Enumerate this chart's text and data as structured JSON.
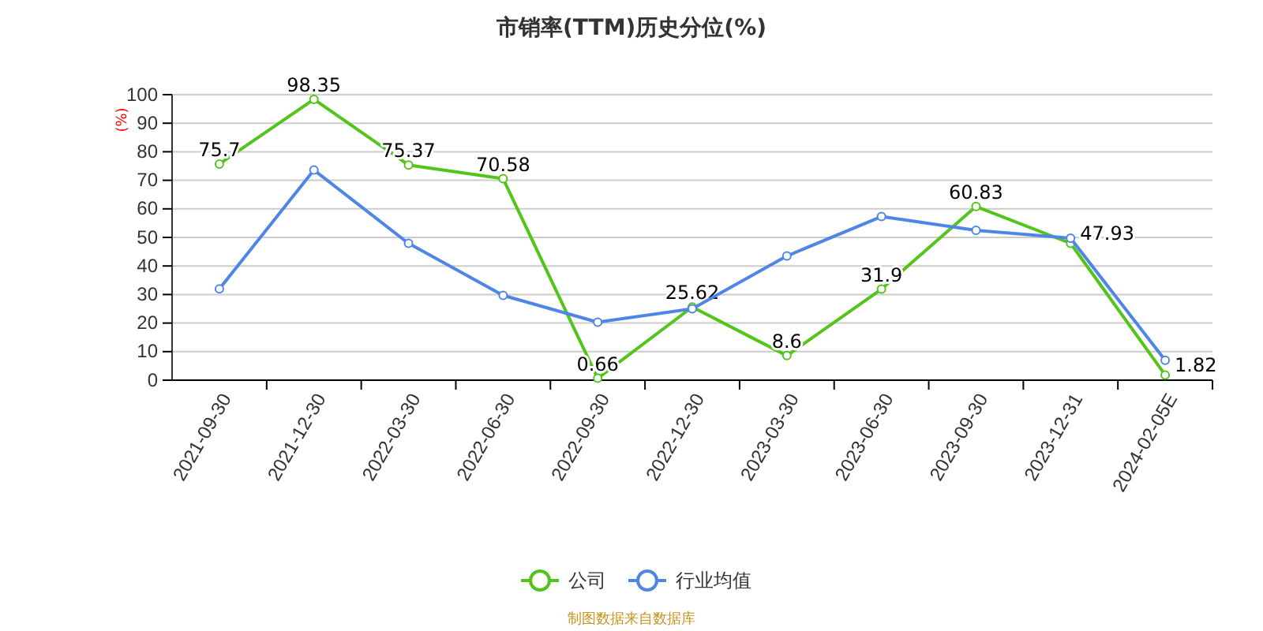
{
  "chart_data": {
    "type": "line",
    "title": "市销率(TTM)历史分位(%)",
    "ylabel": "(%)",
    "categories": [
      "2021-09-30",
      "2021-12-30",
      "2022-03-30",
      "2022-06-30",
      "2022-09-30",
      "2022-12-30",
      "2023-03-30",
      "2023-06-30",
      "2023-09-30",
      "2023-12-31",
      "2024-02-05E"
    ],
    "series": [
      {
        "name": "公司",
        "color": "#52c41a",
        "values": [
          75.7,
          98.35,
          75.37,
          70.58,
          0.66,
          25.62,
          8.6,
          31.9,
          60.83,
          47.93,
          1.82
        ],
        "value_labels": [
          "75.7",
          "98.35",
          "75.37",
          "70.58",
          "0.66",
          "25.62",
          "8.6",
          "31.9",
          "60.83",
          "47.93",
          "1.82"
        ]
      },
      {
        "name": "行业均值",
        "color": "#4f86e6",
        "values": [
          32,
          73.6,
          47.9,
          29.7,
          20.3,
          25,
          43.5,
          57.3,
          52.5,
          49.7,
          7
        ]
      }
    ],
    "ylim": [
      0,
      100
    ],
    "yticks": [
      0,
      10,
      20,
      30,
      40,
      50,
      60,
      70,
      80,
      90,
      100
    ],
    "grid": "y",
    "legend": "bottom",
    "marker": "circle",
    "line_style": "solid",
    "annotations": [
      "制图数据来自数据库"
    ]
  }
}
